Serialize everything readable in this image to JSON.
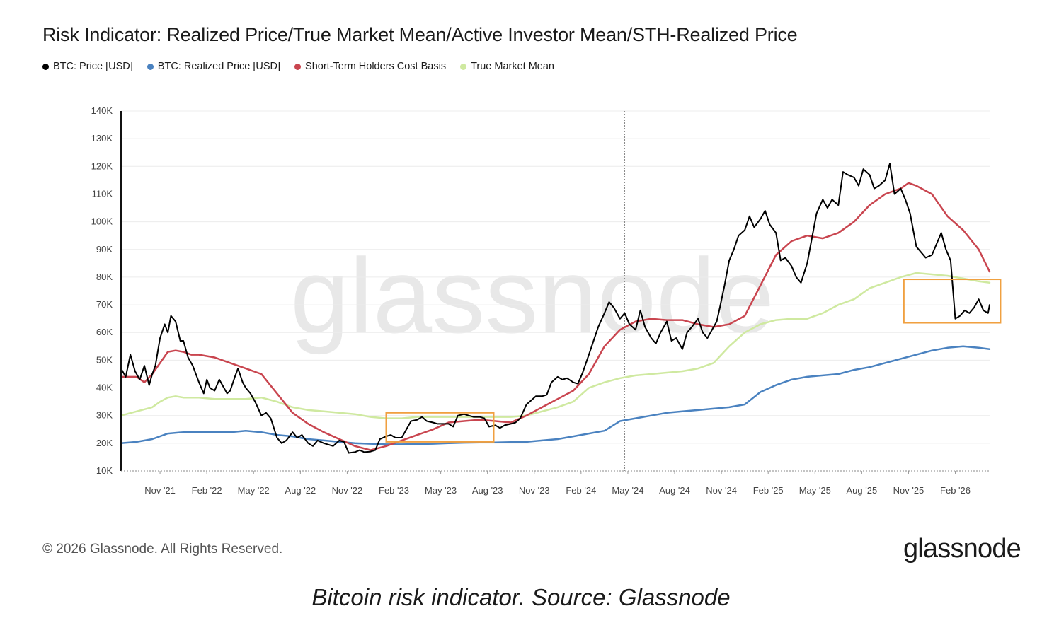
{
  "title": "Risk Indicator: Realized Price/True Market Mean/Active Investor Mean/STH-Realized Price",
  "legend": [
    {
      "label": "BTC: Price [USD]",
      "color": "#000000"
    },
    {
      "label": "BTC: Realized Price [USD]",
      "color": "#4a82c0"
    },
    {
      "label": "Short-Term Holders Cost Basis",
      "color": "#c9454f"
    },
    {
      "label": "True Market Mean",
      "color": "#cfe9a0"
    }
  ],
  "watermark": "glassnode",
  "footer": {
    "copyright": "© 2026 Glassnode. All Rights Reserved.",
    "brand": "glassnode"
  },
  "caption": "Bitcoin risk indicator.  Source: Glassnode",
  "chart_data": {
    "type": "line",
    "title": "Risk Indicator: Realized Price/True Market Mean/Active Investor Mean/STH-Realized Price",
    "x_unit": "months since Sep 2021",
    "xlim": [
      0,
      55.7
    ],
    "ylim": [
      10000,
      140000
    ],
    "y_ticks": [
      {
        "value": 10000,
        "label": "10K"
      },
      {
        "value": 20000,
        "label": "20K"
      },
      {
        "value": 30000,
        "label": "30K"
      },
      {
        "value": 40000,
        "label": "40K"
      },
      {
        "value": 50000,
        "label": "50K"
      },
      {
        "value": 60000,
        "label": "60K"
      },
      {
        "value": 70000,
        "label": "70K"
      },
      {
        "value": 80000,
        "label": "80K"
      },
      {
        "value": 90000,
        "label": "90K"
      },
      {
        "value": 100000,
        "label": "100K"
      },
      {
        "value": 110000,
        "label": "110K"
      },
      {
        "value": 120000,
        "label": "120K"
      },
      {
        "value": 130000,
        "label": "130K"
      },
      {
        "value": 140000,
        "label": "140K"
      }
    ],
    "x_ticks": [
      {
        "value": 2.5,
        "label": "Nov '21"
      },
      {
        "value": 5.5,
        "label": "Feb '22"
      },
      {
        "value": 8.5,
        "label": "May '22"
      },
      {
        "value": 11.5,
        "label": "Aug '22"
      },
      {
        "value": 14.5,
        "label": "Nov '22"
      },
      {
        "value": 17.5,
        "label": "Feb '23"
      },
      {
        "value": 20.5,
        "label": "May '23"
      },
      {
        "value": 23.5,
        "label": "Aug '23"
      },
      {
        "value": 26.5,
        "label": "Nov '23"
      },
      {
        "value": 29.5,
        "label": "Feb '24"
      },
      {
        "value": 32.5,
        "label": "May '24"
      },
      {
        "value": 35.5,
        "label": "Aug '24"
      },
      {
        "value": 38.5,
        "label": "Nov '24"
      },
      {
        "value": 41.5,
        "label": "Feb '25"
      },
      {
        "value": 44.5,
        "label": "May '25"
      },
      {
        "value": 47.5,
        "label": "Aug '25"
      },
      {
        "value": 50.5,
        "label": "Nov '25"
      },
      {
        "value": 53.5,
        "label": "Feb '26"
      }
    ],
    "vertical_marker_x": 32.3,
    "highlight_boxes": [
      {
        "x0": 17.0,
        "x1": 23.9,
        "y0": 20500,
        "y1": 31000
      },
      {
        "x0": 50.2,
        "x1": 56.4,
        "y0": 63500,
        "y1": 79200
      }
    ],
    "series": [
      {
        "name": "BTC: Price [USD]",
        "color": "#000000",
        "width": 2,
        "x": [
          0,
          0.3,
          0.6,
          0.9,
          1.2,
          1.5,
          1.8,
          2.0,
          2.2,
          2.5,
          2.8,
          3.0,
          3.2,
          3.5,
          3.8,
          4.0,
          4.3,
          4.6,
          5.0,
          5.3,
          5.5,
          5.7,
          6.0,
          6.3,
          6.5,
          6.8,
          7.0,
          7.3,
          7.5,
          7.8,
          8.0,
          8.3,
          8.6,
          9.0,
          9.3,
          9.6,
          10.0,
          10.3,
          10.6,
          11.0,
          11.3,
          11.6,
          12.0,
          12.3,
          12.6,
          13.0,
          13.3,
          13.6,
          14.0,
          14.3,
          14.6,
          15.0,
          15.3,
          15.6,
          16.0,
          16.3,
          16.6,
          17.0,
          17.3,
          17.6,
          18.0,
          18.3,
          18.6,
          19.0,
          19.3,
          19.6,
          20.0,
          20.3,
          20.6,
          21.0,
          21.3,
          21.6,
          22.0,
          22.3,
          22.6,
          23.0,
          23.3,
          23.6,
          24.0,
          24.3,
          24.6,
          25.0,
          25.3,
          25.6,
          26.0,
          26.3,
          26.6,
          27.0,
          27.3,
          27.6,
          28.0,
          28.3,
          28.6,
          29.0,
          29.3,
          29.6,
          30.0,
          30.3,
          30.6,
          31.0,
          31.3,
          31.6,
          32.0,
          32.3,
          32.6,
          33.0,
          33.3,
          33.6,
          34.0,
          34.3,
          34.6,
          35.0,
          35.3,
          35.6,
          36.0,
          36.3,
          36.6,
          37.0,
          37.3,
          37.6,
          38.0,
          38.2,
          38.4,
          38.7,
          39.0,
          39.3,
          39.6,
          40.0,
          40.3,
          40.6,
          41.0,
          41.3,
          41.6,
          42.0,
          42.3,
          42.6,
          43.0,
          43.3,
          43.6,
          44.0,
          44.3,
          44.6,
          45.0,
          45.3,
          45.6,
          46.0,
          46.3,
          46.6,
          47.0,
          47.3,
          47.6,
          48.0,
          48.3,
          48.6,
          49.0,
          49.3,
          49.6,
          50.0,
          50.3,
          50.6,
          51.0,
          51.3,
          51.6,
          52.0,
          52.3,
          52.6,
          52.9,
          53.2,
          53.5,
          53.8,
          54.1,
          54.4,
          54.7,
          55.0,
          55.3,
          55.6,
          55.7
        ],
        "values": [
          47000,
          44000,
          52000,
          46000,
          43000,
          48000,
          41000,
          45000,
          48000,
          58000,
          63000,
          60000,
          66000,
          64000,
          57000,
          57000,
          51000,
          48000,
          42000,
          38000,
          43000,
          40000,
          39000,
          43000,
          41000,
          38000,
          39000,
          44000,
          47000,
          42000,
          40000,
          38000,
          35000,
          30000,
          31000,
          29000,
          22000,
          20000,
          21000,
          24000,
          22000,
          23000,
          20000,
          19000,
          21000,
          20000,
          19500,
          19000,
          21000,
          20500,
          16500,
          16800,
          17500,
          16800,
          17000,
          17500,
          21500,
          22500,
          23000,
          22000,
          22000,
          25000,
          28000,
          28500,
          29500,
          28000,
          27500,
          27000,
          27000,
          27000,
          26000,
          30000,
          30500,
          30000,
          29500,
          29500,
          29000,
          26000,
          26500,
          25500,
          26500,
          27000,
          27500,
          29000,
          34000,
          35500,
          37000,
          37000,
          37500,
          42000,
          44000,
          43000,
          43500,
          42000,
          41500,
          45500,
          52000,
          57000,
          62000,
          67000,
          71000,
          69000,
          65000,
          67000,
          63000,
          61000,
          68000,
          62000,
          58000,
          56000,
          60000,
          64000,
          57000,
          58000,
          54000,
          60000,
          62000,
          65000,
          60000,
          58000,
          62000,
          64000,
          69000,
          77000,
          86000,
          90000,
          95000,
          97000,
          102000,
          98000,
          101000,
          104000,
          99000,
          96000,
          86000,
          87000,
          84000,
          80000,
          78000,
          85000,
          94000,
          103000,
          108000,
          105000,
          108000,
          106000,
          118000,
          117000,
          116000,
          113000,
          119000,
          117000,
          112000,
          113000,
          115000,
          121000,
          110000,
          112000,
          108000,
          103000,
          91000,
          89000,
          87000,
          88000,
          92000,
          96000,
          90000,
          86000,
          65000,
          66000,
          68000,
          67000,
          69000,
          72000,
          68000,
          67000,
          70000
        ]
      },
      {
        "name": "BTC: Realized Price [USD]",
        "color": "#4a82c0",
        "width": 2.5,
        "x": [
          0,
          1,
          2,
          3,
          4,
          5,
          6,
          7,
          8,
          9,
          10,
          11,
          12,
          13,
          14,
          15,
          16,
          17,
          18,
          19,
          20,
          21,
          22,
          23,
          24,
          25,
          26,
          27,
          28,
          29,
          30,
          31,
          32,
          33,
          34,
          35,
          36,
          37,
          38,
          39,
          40,
          41,
          42,
          43,
          44,
          45,
          46,
          47,
          48,
          49,
          50,
          51,
          52,
          53,
          54,
          55,
          55.7
        ],
        "values": [
          20000,
          20500,
          21500,
          23500,
          24000,
          24000,
          24000,
          24000,
          24500,
          24000,
          23000,
          22500,
          21500,
          21000,
          20500,
          20000,
          19800,
          19600,
          19600,
          19700,
          19800,
          20000,
          20200,
          20300,
          20300,
          20400,
          20500,
          21000,
          21500,
          22500,
          23500,
          24500,
          28000,
          29000,
          30000,
          31000,
          31500,
          32000,
          32500,
          33000,
          34000,
          38500,
          41000,
          43000,
          44000,
          44500,
          45000,
          46500,
          47500,
          49000,
          50500,
          52000,
          53500,
          54500,
          55000,
          54500,
          54000
        ]
      },
      {
        "name": "Short-Term Holders Cost Basis",
        "color": "#c9454f",
        "width": 2.5,
        "x": [
          0,
          1,
          1.5,
          2,
          2.5,
          3,
          3.5,
          4,
          4.5,
          5,
          6,
          7,
          8,
          9,
          10,
          11,
          12,
          13,
          14,
          15,
          16,
          17,
          18,
          19,
          20,
          21,
          22,
          23,
          24,
          25,
          26,
          27,
          28,
          29,
          30,
          31,
          32,
          33,
          34,
          35,
          36,
          37,
          38,
          39,
          40,
          41,
          42,
          43,
          44,
          45,
          46,
          47,
          48,
          49,
          50,
          50.5,
          51,
          52,
          53,
          54,
          55,
          55.7
        ],
        "values": [
          44000,
          44000,
          42000,
          45000,
          49000,
          53000,
          53500,
          53000,
          52000,
          52000,
          51000,
          49000,
          47000,
          45000,
          38000,
          31000,
          27000,
          24000,
          21500,
          19000,
          17500,
          19000,
          21000,
          23000,
          25000,
          27500,
          28000,
          28500,
          28000,
          27500,
          30000,
          33000,
          36000,
          39000,
          45000,
          55000,
          61000,
          64000,
          65000,
          64500,
          64500,
          63000,
          62000,
          63000,
          66000,
          77000,
          88000,
          93000,
          95000,
          94000,
          96000,
          100000,
          106000,
          110000,
          112000,
          114000,
          113000,
          110000,
          102000,
          97000,
          90000,
          82000
        ]
      },
      {
        "name": "True Market Mean",
        "color": "#cfe9a0",
        "width": 2.5,
        "x": [
          0,
          1,
          2,
          2.5,
          3,
          3.5,
          4,
          5,
          6,
          7,
          8,
          9,
          10,
          11,
          12,
          13,
          14,
          15,
          16,
          17,
          18,
          19,
          20,
          21,
          22,
          23,
          24,
          25,
          26,
          27,
          28,
          29,
          30,
          31,
          32,
          33,
          34,
          35,
          36,
          37,
          38,
          39,
          40,
          41,
          42,
          43,
          44,
          45,
          46,
          47,
          48,
          49,
          50,
          51,
          52,
          53,
          54,
          55,
          55.7
        ],
        "values": [
          30000,
          31500,
          33000,
          35000,
          36500,
          37000,
          36500,
          36500,
          36000,
          36000,
          36000,
          36500,
          35000,
          33000,
          32000,
          31500,
          31000,
          30500,
          29500,
          29000,
          29000,
          29500,
          29500,
          29500,
          29500,
          29500,
          29500,
          29500,
          30000,
          31500,
          33000,
          35000,
          40000,
          42000,
          43500,
          44500,
          45000,
          45500,
          46000,
          47000,
          49000,
          55000,
          60000,
          63000,
          64500,
          65000,
          65000,
          67000,
          70000,
          72000,
          76000,
          78000,
          80000,
          81500,
          81000,
          80500,
          79500,
          78500,
          78000
        ]
      }
    ]
  }
}
